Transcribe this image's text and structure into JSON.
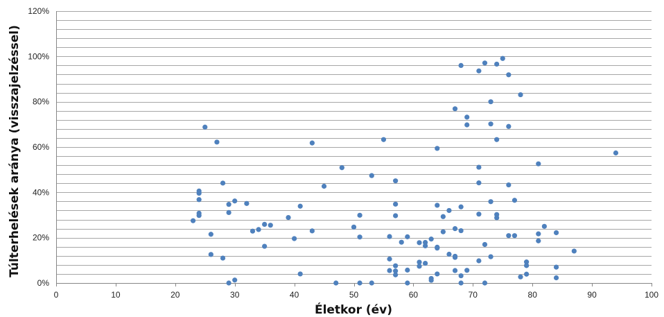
{
  "chart_data": {
    "type": "scatter",
    "xlabel": "Életkor (év)",
    "ylabel": "Túlterhelések aránya (visszajelzéssel)",
    "xlim": [
      0,
      100
    ],
    "ylim": [
      0,
      120
    ],
    "x_ticks": [
      "0",
      "10",
      "20",
      "30",
      "40",
      "50",
      "60",
      "70",
      "80",
      "90",
      "100"
    ],
    "y_ticks": [
      "0%",
      "20%",
      "40%",
      "60%",
      "80%",
      "100%",
      "120%"
    ],
    "y_gridline_step": 4,
    "grid": true,
    "legend": "none",
    "marker_color": "#4f81bd",
    "gridline_color": "#a6a6a6",
    "series": [
      {
        "points": [
          [
            23,
            27.5
          ],
          [
            24,
            40.6
          ],
          [
            24,
            39.6
          ],
          [
            24,
            36.8
          ],
          [
            24,
            30.8
          ],
          [
            24,
            29.8
          ],
          [
            25,
            68.8
          ],
          [
            26,
            21.5
          ],
          [
            26,
            12.6
          ],
          [
            27,
            62.2
          ],
          [
            28,
            44.1
          ],
          [
            28,
            11.0
          ],
          [
            29,
            34.7
          ],
          [
            29,
            31.1
          ],
          [
            29,
            0.0
          ],
          [
            30,
            36.2
          ],
          [
            30,
            1.3
          ],
          [
            32,
            35.1
          ],
          [
            33,
            22.9
          ],
          [
            34,
            23.6
          ],
          [
            35,
            25.9
          ],
          [
            35,
            16.2
          ],
          [
            36,
            25.5
          ],
          [
            39,
            28.9
          ],
          [
            40,
            19.6
          ],
          [
            41,
            33.9
          ],
          [
            41,
            4.0
          ],
          [
            43,
            61.8
          ],
          [
            43,
            23.0
          ],
          [
            45,
            42.7
          ],
          [
            47,
            0.0
          ],
          [
            48,
            50.9
          ],
          [
            50,
            24.7
          ],
          [
            51,
            29.9
          ],
          [
            51,
            20.3
          ],
          [
            51,
            0.0
          ],
          [
            53,
            47.4
          ],
          [
            53,
            0.0
          ],
          [
            55,
            63.3
          ],
          [
            56,
            20.5
          ],
          [
            56,
            10.6
          ],
          [
            56,
            5.5
          ],
          [
            57,
            45.1
          ],
          [
            57,
            34.8
          ],
          [
            57,
            29.7
          ],
          [
            57,
            7.6
          ],
          [
            57,
            5.3
          ],
          [
            57,
            3.6
          ],
          [
            58,
            18.0
          ],
          [
            59,
            20.4
          ],
          [
            59,
            5.7
          ],
          [
            59,
            0.0
          ],
          [
            61,
            17.8
          ],
          [
            61,
            9.2
          ],
          [
            61,
            7.4
          ],
          [
            62,
            17.9
          ],
          [
            62,
            16.4
          ],
          [
            62,
            8.7
          ],
          [
            63,
            19.4
          ],
          [
            63,
            2.0
          ],
          [
            63,
            1.2
          ],
          [
            64,
            59.4
          ],
          [
            64,
            34.3
          ],
          [
            64,
            15.8
          ],
          [
            64,
            15.4
          ],
          [
            64,
            4.0
          ],
          [
            65,
            29.3
          ],
          [
            65,
            22.6
          ],
          [
            66,
            32.0
          ],
          [
            66,
            12.7
          ],
          [
            67,
            76.9
          ],
          [
            67,
            24.0
          ],
          [
            67,
            11.8
          ],
          [
            67,
            11.3
          ],
          [
            67,
            5.5
          ],
          [
            68,
            96.0
          ],
          [
            68,
            33.6
          ],
          [
            68,
            23.1
          ],
          [
            68,
            3.2
          ],
          [
            68,
            0.0
          ],
          [
            69,
            73.2
          ],
          [
            69,
            69.8
          ],
          [
            69,
            5.6
          ],
          [
            71,
            93.6
          ],
          [
            71,
            51.1
          ],
          [
            71,
            44.2
          ],
          [
            71,
            30.4
          ],
          [
            71,
            9.8
          ],
          [
            72,
            97.1
          ],
          [
            72,
            17.0
          ],
          [
            72,
            0.0
          ],
          [
            73,
            80.0
          ],
          [
            73,
            70.2
          ],
          [
            73,
            35.9
          ],
          [
            73,
            11.6
          ],
          [
            74,
            96.6
          ],
          [
            74,
            63.3
          ],
          [
            74,
            30.2
          ],
          [
            74,
            28.8
          ],
          [
            75,
            99.1
          ],
          [
            76,
            91.9
          ],
          [
            76,
            69.1
          ],
          [
            76,
            43.3
          ],
          [
            76,
            20.9
          ],
          [
            77,
            36.5
          ],
          [
            77,
            20.9
          ],
          [
            78,
            83.1
          ],
          [
            78,
            2.7
          ],
          [
            79,
            9.3
          ],
          [
            79,
            7.7
          ],
          [
            79,
            3.9
          ],
          [
            81,
            52.6
          ],
          [
            81,
            21.7
          ],
          [
            81,
            18.6
          ],
          [
            82,
            25.0
          ],
          [
            84,
            22.2
          ],
          [
            84,
            7.0
          ],
          [
            84,
            2.3
          ],
          [
            87,
            14.1
          ],
          [
            94,
            57.4
          ]
        ]
      }
    ]
  }
}
